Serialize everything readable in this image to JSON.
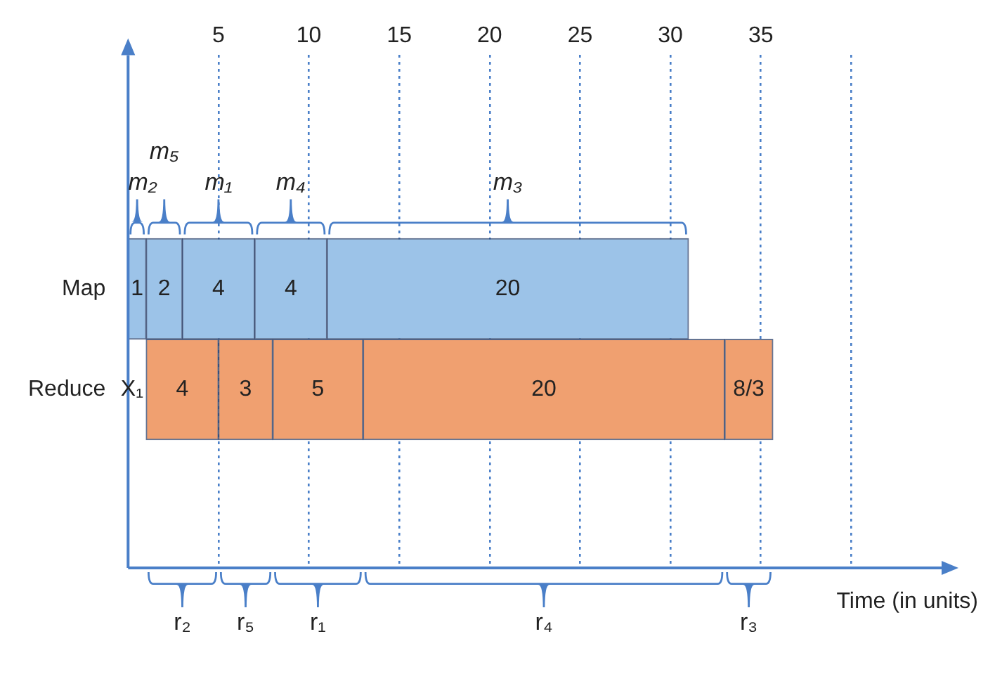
{
  "chart_data": {
    "type": "bar",
    "orientation": "horizontal",
    "categories": [
      "Map",
      "Reduce"
    ],
    "series": [
      {
        "colors": [
          "#9cc3e8",
          "#f0a070"
        ],
        "base": [
          0,
          1
        ],
        "values": [
          1,
          4
        ],
        "value_labels": [
          "1",
          "4"
        ]
      },
      {
        "colors": [
          "#9cc3e8",
          "#f0a070"
        ],
        "base": [
          1,
          5
        ],
        "values": [
          2,
          3
        ],
        "value_labels": [
          "2",
          "3"
        ]
      },
      {
        "colors": [
          "#9cc3e8",
          "#f0a070"
        ],
        "base": [
          3,
          8
        ],
        "values": [
          4,
          5
        ],
        "value_labels": [
          "4",
          "5"
        ]
      },
      {
        "colors": [
          "#9cc3e8",
          "#f0a070"
        ],
        "base": [
          7,
          13
        ],
        "values": [
          4,
          20
        ],
        "value_labels": [
          "4",
          "20"
        ]
      },
      {
        "colors": [
          "#9cc3e8",
          "#f0a070"
        ],
        "base": [
          11,
          33
        ],
        "values": [
          20,
          2.667
        ],
        "value_labels": [
          "20",
          "8/3"
        ]
      }
    ],
    "xlim": [
      0,
      45
    ],
    "xticks": [
      5,
      10,
      15,
      20,
      25,
      30,
      35,
      {
        "value": 40,
        "label": null
      }
    ],
    "grid": "x",
    "line_style": "dotted",
    "xlabel": "Time (in units)",
    "annotations": [
      "m₂",
      "m₅",
      "m₁",
      "m₄",
      "m₃",
      "r₂",
      "r₅",
      "r₁",
      "r₄",
      "r₃",
      "X₁"
    ]
  }
}
